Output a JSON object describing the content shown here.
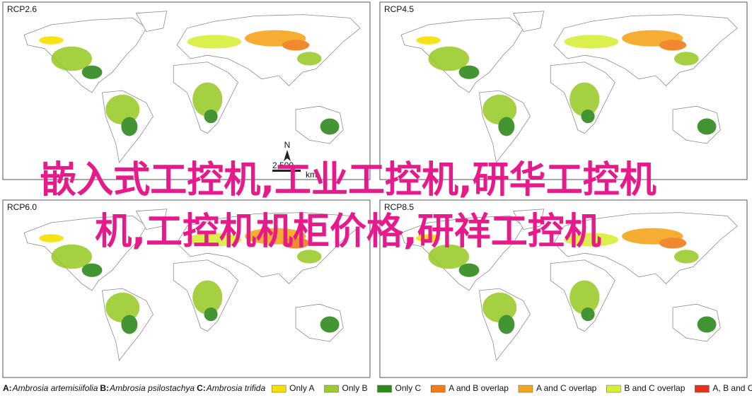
{
  "title_lines": [
    "嵌入式工控机,工业工控机,研华工控机",
    "机,工控机机柜价格,研祥工控机"
  ],
  "panels": [
    {
      "label": "RCP2.6"
    },
    {
      "label": "RCP4.5"
    },
    {
      "label": "RCP6.0"
    },
    {
      "label": "RCP8.5"
    }
  ],
  "north_arrow": "N",
  "scale_bar": {
    "value": "2,500",
    "unit": "km"
  },
  "legend": {
    "species": [
      {
        "letter": "A:",
        "name": "Ambrosia artemisiifolia"
      },
      {
        "letter": "B:",
        "name": "Ambrosia psilostachya"
      },
      {
        "letter": "C:",
        "name": "Ambrosia trifida"
      }
    ],
    "classes": [
      {
        "label": "Only A",
        "color": "#f5e100"
      },
      {
        "label": "Only B",
        "color": "#9bcb2e"
      },
      {
        "label": "Only C",
        "color": "#2f8a1e"
      },
      {
        "label": "A and B overlap",
        "color": "#f07d1a"
      },
      {
        "label": "A and C overlap",
        "color": "#f5a51d"
      },
      {
        "label": "B and C overlap",
        "color": "#d8ef3a"
      },
      {
        "label": "A, B and C overlap",
        "color": "#e8301a"
      }
    ]
  }
}
